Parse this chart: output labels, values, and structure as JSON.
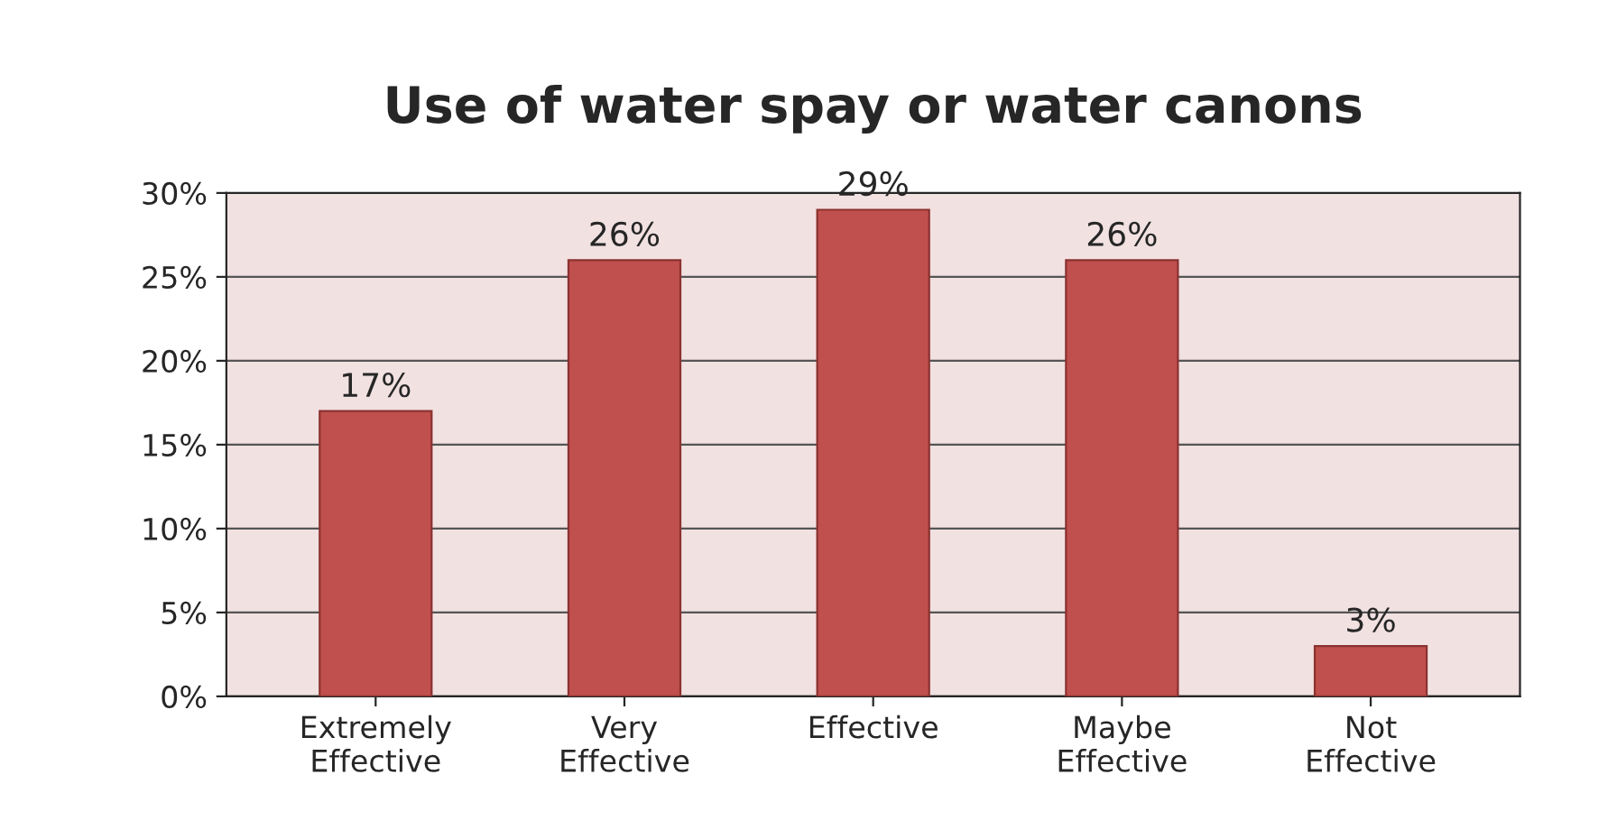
{
  "chart_data": {
    "type": "bar",
    "title": "Use of water spay or water canons",
    "categories": [
      "Extremely\nEffective",
      "Very\nEffective",
      "Effective",
      "Maybe\nEffective",
      "Not\nEffective"
    ],
    "values": [
      17,
      26,
      29,
      26,
      3
    ],
    "value_labels": [
      "17%",
      "26%",
      "29%",
      "26%",
      "3%"
    ],
    "color": "#c0504d",
    "ylim": [
      0,
      30
    ],
    "yticks": [
      {
        "value": 0,
        "label": "0%"
      },
      {
        "value": 5,
        "label": "5%"
      },
      {
        "value": 10,
        "label": "10%"
      },
      {
        "value": 15,
        "label": "15%"
      },
      {
        "value": 20,
        "label": "20%"
      },
      {
        "value": 25,
        "label": "25%"
      },
      {
        "value": 30,
        "label": "30%"
      }
    ],
    "grid": "y"
  }
}
